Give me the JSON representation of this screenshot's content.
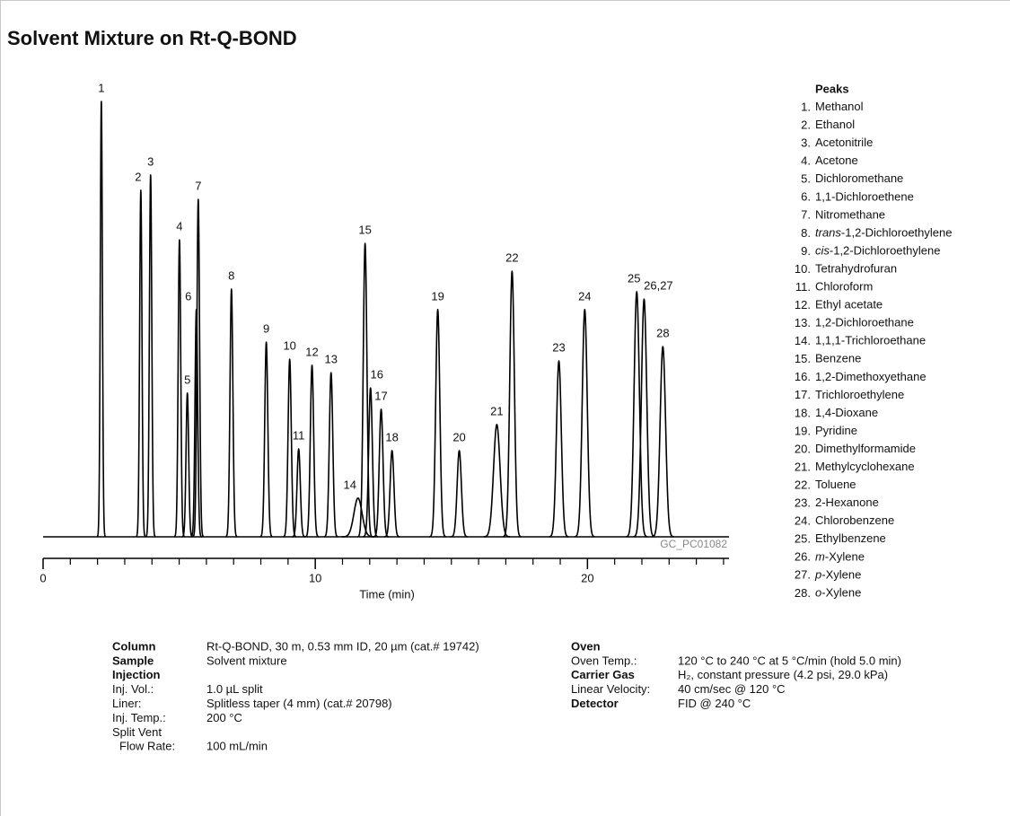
{
  "title": "Solvent Mixture on Rt-Q-BOND",
  "chart_data": {
    "type": "chromatogram",
    "x_label": "Time (min)",
    "code": "GC_PC01082",
    "color": "#000000",
    "xlim": [
      0,
      25.2
    ],
    "xticks": [
      0,
      10,
      20
    ],
    "minor_xticks": [
      1,
      2,
      3,
      4,
      5,
      6,
      7,
      8,
      9,
      11,
      12,
      13,
      14,
      15,
      16,
      17,
      18,
      19,
      21,
      22,
      23,
      24,
      25
    ],
    "ylim": [
      0,
      100
    ],
    "peaks": [
      {
        "label": "1",
        "time": 2.14,
        "height": 100
      },
      {
        "label": "2",
        "time": 3.59,
        "height": 79.6
      },
      {
        "label": "3",
        "time": 3.95,
        "height": 83.1
      },
      {
        "label": "4",
        "time": 5.01,
        "height": 68.2
      },
      {
        "label": "5",
        "time": 5.3,
        "height": 33.0
      },
      {
        "label": "6",
        "time": 5.63,
        "height": 52.2
      },
      {
        "label": "7",
        "time": 5.7,
        "height": 77.5
      },
      {
        "label": "8",
        "time": 6.92,
        "height": 56.9
      },
      {
        "label": "9",
        "time": 8.2,
        "height": 44.7
      },
      {
        "label": "10",
        "time": 9.06,
        "height": 40.8
      },
      {
        "label": "11",
        "time": 9.39,
        "height": 20.2
      },
      {
        "label": "12",
        "time": 9.88,
        "height": 39.4
      },
      {
        "label": "13",
        "time": 10.58,
        "height": 37.7
      },
      {
        "label": "14",
        "time": 11.57,
        "height": 8.9
      },
      {
        "label": "15",
        "time": 11.83,
        "height": 67.4
      },
      {
        "label": "16",
        "time": 12.03,
        "height": 34.2
      },
      {
        "label": "17",
        "time": 12.42,
        "height": 29.3
      },
      {
        "label": "18",
        "time": 12.82,
        "height": 19.8
      },
      {
        "label": "19",
        "time": 14.5,
        "height": 52.2
      },
      {
        "label": "20",
        "time": 15.29,
        "height": 19.8
      },
      {
        "label": "21",
        "time": 16.67,
        "height": 25.8
      },
      {
        "label": "22",
        "time": 17.23,
        "height": 61.0
      },
      {
        "label": "23",
        "time": 18.95,
        "height": 40.4
      },
      {
        "label": "24",
        "time": 19.9,
        "height": 52.2
      },
      {
        "label": "25",
        "time": 21.81,
        "height": 56.3
      },
      {
        "label": "26,27",
        "time": 22.08,
        "height": 54.6
      },
      {
        "label": "28",
        "time": 22.77,
        "height": 43.7
      }
    ]
  },
  "legend": {
    "title": "Peaks",
    "items": [
      {
        "number": "1.",
        "name": "Methanol"
      },
      {
        "number": "2.",
        "name": "Ethanol"
      },
      {
        "number": "3.",
        "name": "Acetonitrile"
      },
      {
        "number": "4.",
        "name": "Acetone"
      },
      {
        "number": "5.",
        "name": "Dichloromethane"
      },
      {
        "number": "6.",
        "name": "1,1-Dichloroethene"
      },
      {
        "number": "7.",
        "name": "Nitromethane"
      },
      {
        "number": "8.",
        "italic": "trans",
        "name": "-1,2-Dichloroethylene"
      },
      {
        "number": "9.",
        "italic": "cis",
        "name": "-1,2-Dichloroethylene"
      },
      {
        "number": "10.",
        "name": "Tetrahydrofuran"
      },
      {
        "number": "11.",
        "name": "Chloroform"
      },
      {
        "number": "12.",
        "name": "Ethyl acetate"
      },
      {
        "number": "13.",
        "name": "1,2-Dichloroethane"
      },
      {
        "number": "14.",
        "name": "1,1,1-Trichloroethane"
      },
      {
        "number": "15.",
        "name": "Benzene"
      },
      {
        "number": "16.",
        "name": "1,2-Dimethoxyethane"
      },
      {
        "number": "17.",
        "name": "Trichloroethylene"
      },
      {
        "number": "18.",
        "name": "1,4-Dioxane"
      },
      {
        "number": "19.",
        "name": "Pyridine"
      },
      {
        "number": "20.",
        "name": "Dimethylformamide"
      },
      {
        "number": "21.",
        "name": "Methylcyclohexane"
      },
      {
        "number": "22.",
        "name": "Toluene"
      },
      {
        "number": "23.",
        "name": "2-Hexanone"
      },
      {
        "number": "24.",
        "name": "Chlorobenzene"
      },
      {
        "number": "25.",
        "name": "Ethylbenzene"
      },
      {
        "number": "26.",
        "italic": "m",
        "name": "-Xylene"
      },
      {
        "number": "27.",
        "italic": "p",
        "name": "-Xylene"
      },
      {
        "number": "28.",
        "italic": "o",
        "name": "-Xylene"
      }
    ]
  },
  "conditions": {
    "left": [
      {
        "label": "Column",
        "bold": true,
        "value": "Rt-Q-BOND, 30 m, 0.53 mm ID, 20 µm (cat.# 19742)"
      },
      {
        "label": "Sample",
        "bold": true,
        "value": "Solvent mixture"
      },
      {
        "label": "Injection",
        "bold": true
      },
      {
        "label": "Inj. Vol.:",
        "value": "1.0 µL split"
      },
      {
        "label": "Liner:",
        "value": "Splitless taper (4 mm) (cat.# 20798)"
      },
      {
        "label": "Inj. Temp.:",
        "value": "200 °C"
      },
      {
        "label": "Split Vent"
      },
      {
        "label": "Flow Rate:",
        "indent": true,
        "value": "100 mL/min"
      }
    ],
    "right": [
      {
        "label": "Oven",
        "bold": true
      },
      {
        "label": "Oven Temp.:",
        "value": "120 °C to 240 °C at 5 °C/min (hold 5.0 min)"
      },
      {
        "label": "Carrier Gas",
        "bold": true,
        "value": "H₂, constant pressure (4.2 psi, 29.0 kPa)"
      },
      {
        "label": "Linear Velocity:",
        "value": "40 cm/sec @ 120 °C"
      },
      {
        "label": "Detector",
        "bold": true,
        "value": "FID @ 240 °C"
      }
    ]
  }
}
